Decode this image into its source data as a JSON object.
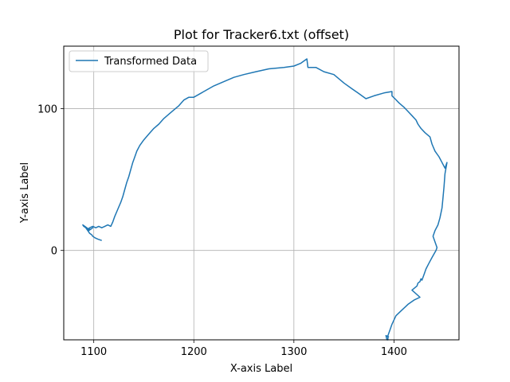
{
  "chart_data": {
    "type": "line",
    "title": "Plot for Tracker6.txt (offset)",
    "xlabel": "X-axis Label",
    "ylabel": "Y-axis Label",
    "xlim": [
      1070,
      1465
    ],
    "ylim": [
      -63,
      144
    ],
    "xticks": [
      1100,
      1200,
      1300,
      1400
    ],
    "yticks": [
      0,
      100
    ],
    "grid": true,
    "legend": {
      "position": "top-left"
    },
    "series": [
      {
        "name": "Transformed Data",
        "color": "#1f77b4",
        "x": [
          1108,
          1104,
          1101,
          1099,
          1098,
          1096,
          1094,
          1092,
          1090,
          1089,
          1091,
          1093,
          1095,
          1097,
          1099,
          1097,
          1095,
          1094,
          1096,
          1099,
          1102,
          1105,
          1108,
          1111,
          1114,
          1117,
          1119,
          1121,
          1124,
          1127,
          1129,
          1131,
          1133,
          1135,
          1137,
          1139,
          1141,
          1143,
          1146,
          1150,
          1155,
          1160,
          1165,
          1170,
          1175,
          1180,
          1185,
          1190,
          1195,
          1200,
          1210,
          1220,
          1230,
          1240,
          1250,
          1262,
          1275,
          1290,
          1300,
          1307,
          1313,
          1314,
          1322,
          1330,
          1340,
          1350,
          1358,
          1364,
          1368,
          1372,
          1380,
          1390,
          1398,
          1398,
          1401,
          1405,
          1410,
          1414,
          1418,
          1422,
          1424,
          1427,
          1431,
          1436,
          1438,
          1441,
          1445,
          1448,
          1451,
          1453,
          1451,
          1450,
          1449,
          1448,
          1446,
          1444,
          1441,
          1439,
          1441,
          1443,
          1442,
          1438,
          1435,
          1432,
          1430,
          1428,
          1427,
          1426,
          1424,
          1423,
          1418,
          1426,
          1420,
          1414,
          1408,
          1402,
          1398,
          1396,
          1394,
          1394,
          1393,
          1392,
          1395
        ],
        "y": [
          7,
          8,
          9,
          10,
          11,
          12,
          14,
          16,
          17,
          18,
          17,
          16,
          15,
          15,
          16,
          15,
          14,
          15,
          16,
          17,
          16,
          17,
          16,
          17,
          18,
          17,
          20,
          24,
          29,
          34,
          38,
          43,
          48,
          52,
          57,
          62,
          66,
          70,
          74,
          78,
          82,
          86,
          89,
          93,
          96,
          99,
          102,
          106,
          108,
          108,
          112,
          116,
          119,
          122,
          124,
          126,
          128,
          129,
          130,
          132,
          135,
          129,
          129,
          126,
          124,
          118,
          114,
          111,
          109,
          107,
          109,
          111,
          112,
          109,
          107,
          104,
          101,
          98,
          95,
          92,
          89,
          86,
          83,
          80,
          75,
          70,
          66,
          62,
          58,
          62,
          54,
          45,
          37,
          30,
          23,
          18,
          14,
          10,
          6,
          2,
          0,
          -5,
          -9,
          -13,
          -17,
          -21,
          -20,
          -22,
          -23,
          -25,
          -28,
          -33,
          -35,
          -38,
          -42,
          -46,
          -52,
          -56,
          -60,
          -63,
          -63,
          -60,
          -61
        ]
      }
    ]
  }
}
